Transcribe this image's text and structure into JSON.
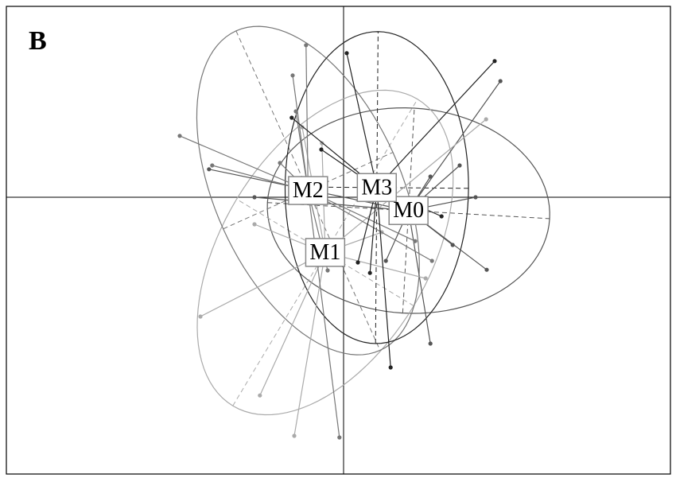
{
  "chart_data": {
    "type": "scatter",
    "title": "B",
    "xlim": [
      -10.6,
      10.275
    ],
    "ylim": [
      -8.7,
      6.0
    ],
    "series": [
      {
        "name": "M0",
        "color": "#555555",
        "x": [
          4.93,
          3.65,
          4.15,
          4.5,
          3.43,
          2.73,
          1.33,
          -4.23,
          -2.8,
          2.73
        ],
        "y": [
          3.65,
          1.0,
          0,
          -2.28,
          -1.5,
          -4.6,
          -2.0,
          0.88,
          0,
          0.65
        ]
      },
      {
        "name": "M1",
        "color": "#aaaaaa",
        "x": [
          -4.5,
          -2.63,
          -1.55,
          -2.8,
          1.2,
          4.48,
          2.58,
          -1.3,
          -0.68
        ],
        "y": [
          -3.75,
          -6.23,
          -7.5,
          -0.85,
          -1.1,
          2.45,
          -2.55,
          2.2,
          1.7
        ]
      },
      {
        "name": "M2",
        "color": "#777777",
        "x": [
          -5.15,
          -4.13,
          -2.0,
          -1.6,
          -1.18,
          -1.5,
          -0.13,
          -0.5,
          2.25,
          2.78
        ],
        "y": [
          1.93,
          1.0,
          1.08,
          3.83,
          4.78,
          2.7,
          -7.55,
          -2.3,
          -1.38,
          -2.0
        ]
      },
      {
        "name": "M3",
        "color": "#222222",
        "x": [
          0.1,
          4.75,
          -1.63,
          -0.7,
          1.48,
          0.83,
          0.45,
          3.08
        ],
        "y": [
          4.53,
          4.28,
          2.5,
          1.5,
          -5.35,
          -2.38,
          -2.05,
          -0.6
        ]
      }
    ]
  }
}
